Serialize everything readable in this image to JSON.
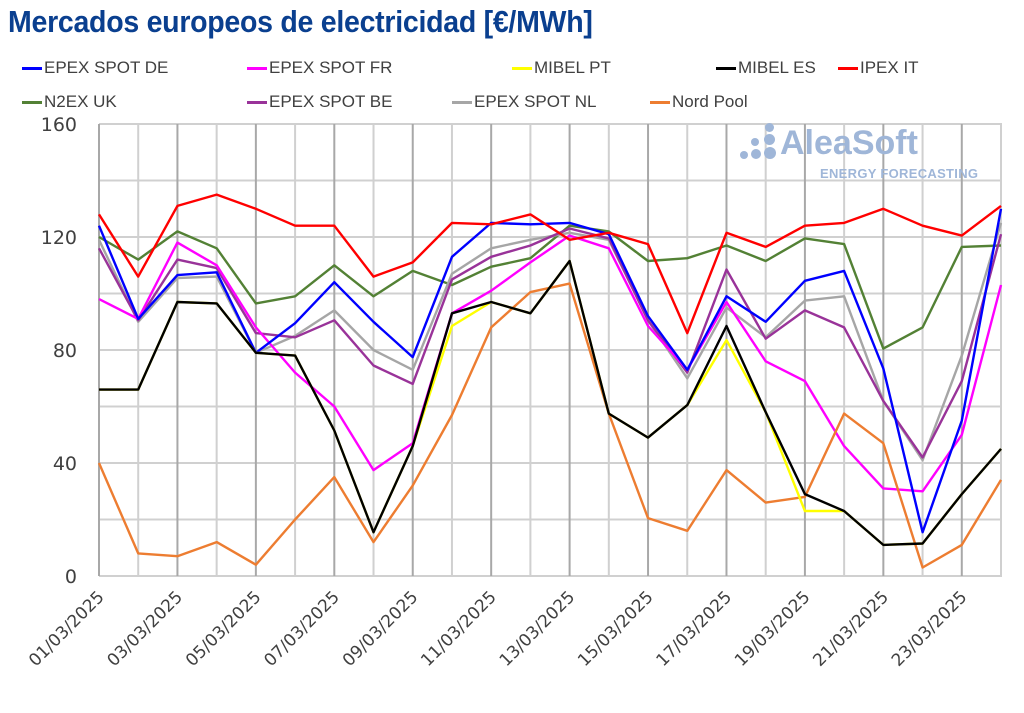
{
  "title": "Mercados europeos de electricidad [€/MWh]",
  "watermark": {
    "brand": "AleaSoft",
    "tagline": "ENERGY FORECASTING",
    "icon": "dots-logo-icon"
  },
  "legend": [
    {
      "name": "EPEX SPOT DE",
      "color": "#0000ff"
    },
    {
      "name": "EPEX SPOT FR",
      "color": "#ff00ff"
    },
    {
      "name": "MIBEL PT",
      "color": "#ffff00"
    },
    {
      "name": "MIBEL ES",
      "color": "#000000"
    },
    {
      "name": "IPEX IT",
      "color": "#ff0000"
    },
    {
      "name": "N2EX UK",
      "color": "#538135"
    },
    {
      "name": "EPEX SPOT BE",
      "color": "#993399"
    },
    {
      "name": "EPEX SPOT NL",
      "color": "#a6a6a6"
    },
    {
      "name": "Nord Pool",
      "color": "#ed7d31"
    }
  ],
  "chart_data": {
    "type": "line",
    "title": "Mercados europeos de electricidad [€/MWh]",
    "xlabel": "",
    "ylabel": "€/MWh",
    "ylim": [
      0,
      160
    ],
    "yticks": [
      0,
      40,
      80,
      120,
      160
    ],
    "grid": true,
    "legend_position": "top",
    "x": [
      "01/03/2025",
      "02/03/2025",
      "03/03/2025",
      "04/03/2025",
      "05/03/2025",
      "06/03/2025",
      "07/03/2025",
      "08/03/2025",
      "09/03/2025",
      "10/03/2025",
      "11/03/2025",
      "12/03/2025",
      "13/03/2025",
      "14/03/2025",
      "15/03/2025",
      "16/03/2025",
      "17/03/2025",
      "18/03/2025",
      "19/03/2025",
      "20/03/2025",
      "21/03/2025",
      "22/03/2025",
      "23/03/2025",
      "24/03/2025"
    ],
    "xtick_labels": [
      "01/03/2025",
      "03/03/2025",
      "05/03/2025",
      "07/03/2025",
      "09/03/2025",
      "11/03/2025",
      "13/03/2025",
      "15/03/2025",
      "17/03/2025",
      "19/03/2025",
      "21/03/2025",
      "23/03/2025"
    ],
    "series": [
      {
        "name": "N2EX UK",
        "color": "#538135",
        "values": [
          120,
          112,
          122,
          116,
          96.5,
          99,
          110,
          99,
          108,
          103,
          109.5,
          112.5,
          124,
          122,
          111.5,
          112.5,
          117,
          111.5,
          119.5,
          117.5,
          80.5,
          88,
          116.5,
          117
        ]
      },
      {
        "name": "EPEX SPOT NL",
        "color": "#a6a6a6",
        "values": [
          119,
          90,
          105.5,
          106,
          79,
          85,
          94,
          80,
          73,
          107,
          116,
          119,
          121.5,
          119,
          90.5,
          70,
          95,
          84.5,
          97.5,
          99,
          62,
          41,
          78,
          125
        ]
      },
      {
        "name": "EPEX SPOT BE",
        "color": "#993399",
        "values": [
          116,
          90.5,
          112,
          109,
          86,
          84.5,
          90.5,
          74.5,
          68,
          105,
          113,
          117,
          123,
          119.5,
          90.5,
          72,
          108.5,
          84,
          94,
          88,
          62,
          42,
          69,
          121
        ]
      },
      {
        "name": "EPEX SPOT FR",
        "color": "#ff00ff",
        "values": [
          98,
          91,
          118,
          110,
          88,
          72,
          60,
          37.5,
          47,
          93,
          101,
          111,
          120.5,
          116,
          88.5,
          73,
          97,
          76,
          69,
          46,
          31,
          30,
          50,
          103
        ]
      },
      {
        "name": "EPEX SPOT DE",
        "color": "#0000ff",
        "values": [
          124,
          91,
          106.5,
          107.5,
          79,
          89.5,
          104,
          90,
          77.5,
          113,
          125,
          124.5,
          125,
          121,
          92,
          73,
          99,
          90,
          104.5,
          108,
          73.5,
          15.5,
          55,
          130
        ]
      },
      {
        "name": "Nord Pool",
        "color": "#ed7d31",
        "values": [
          40,
          8,
          7,
          12,
          4,
          20,
          35,
          12,
          32,
          57,
          88,
          100.5,
          103.5,
          57.5,
          20.5,
          16,
          37.5,
          26,
          28,
          57.5,
          47,
          3,
          11,
          34
        ]
      },
      {
        "name": "MIBEL PT",
        "color": "#ffff00",
        "values": [
          66,
          66,
          97,
          96.5,
          79,
          78,
          51.5,
          15.5,
          46,
          88.5,
          97,
          93,
          111.5,
          57.5,
          49,
          60.5,
          83.5,
          58,
          23,
          23,
          11,
          11.5,
          29,
          45
        ]
      },
      {
        "name": "MIBEL ES",
        "color": "#000000",
        "values": [
          66,
          66,
          97,
          96.5,
          79,
          78,
          51.5,
          15.5,
          46,
          93,
          97,
          93,
          111.5,
          57.5,
          49,
          60.5,
          88.5,
          58,
          29,
          23,
          11,
          11.5,
          29,
          45
        ]
      },
      {
        "name": "IPEX IT",
        "color": "#ff0000",
        "values": [
          128,
          106,
          131,
          135,
          130,
          124,
          124,
          106,
          111,
          125,
          124.5,
          128,
          119,
          121.5,
          117.5,
          86,
          121.5,
          116.5,
          124,
          125,
          130,
          124,
          120.5,
          131
        ]
      }
    ]
  }
}
